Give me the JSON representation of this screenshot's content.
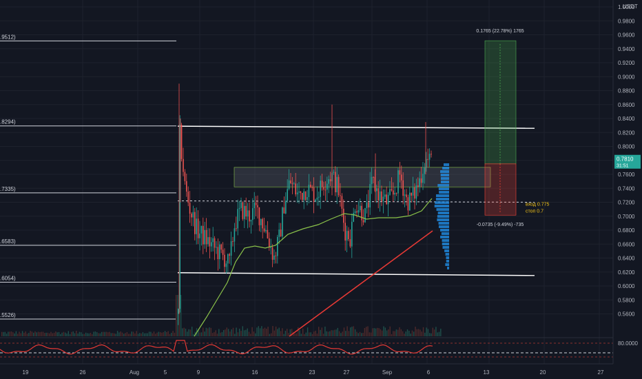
{
  "chart_data": {
    "type": "candlestick",
    "currency": "USDT",
    "price_axis": {
      "ticks": [
        "1.0000",
        "0.9800",
        "0.9600",
        "0.9400",
        "0.9200",
        "0.9000",
        "0.8800",
        "0.8600",
        "0.8400",
        "0.8200",
        "0.8000",
        "0.7800",
        "0.7600",
        "0.7400",
        "0.7200",
        "0.7000",
        "0.6800",
        "0.6600",
        "0.6400",
        "0.6200",
        "0.6000",
        "0.5800",
        "0.5600"
      ],
      "range": [
        0.548,
        1.0147
      ]
    },
    "time_axis": {
      "ticks": [
        "19",
        "26",
        "Aug",
        "5",
        "9",
        "16",
        "23",
        "27",
        "Sep",
        "6",
        "13",
        "20",
        "27"
      ]
    },
    "current_price": {
      "value": "0.7810",
      "countdown": "31:51"
    },
    "fib_levels": [
      {
        "label": ".0147)",
        "price": 1.0147
      },
      {
        "label": ".9512)",
        "price": 0.9512
      },
      {
        "label": ".8294)",
        "price": 0.8294
      },
      {
        "label": ".7335)",
        "price": 0.7335
      },
      {
        "label": ".6583)",
        "price": 0.6583
      },
      {
        "label": ".6054)",
        "price": 0.6054
      },
      {
        "label": ".5526)",
        "price": 0.5526
      }
    ],
    "channel": {
      "upper": 0.826,
      "lower": 0.618
    },
    "entry_line": 0.722,
    "consolidation_zone": [
      0.742,
      0.77
    ],
    "position": {
      "entry": 0.775,
      "target": 0.9515,
      "stop": 0.7015,
      "profit_label": "0.1765 (22.78%) 1765",
      "loss_label": "-0.0735 (-9.49%) -735",
      "entry_note": "вход 0.775",
      "stop_note": "стоп 0.7"
    },
    "oscillator": {
      "label": "80.0000",
      "upper_band": 80,
      "lower_band": 20
    },
    "colors": {
      "up": "#26a69a",
      "down": "#ef5350",
      "ma_fast": "#8bc34a",
      "ma_slow": "#e53935",
      "accent": "#26a69a"
    }
  }
}
